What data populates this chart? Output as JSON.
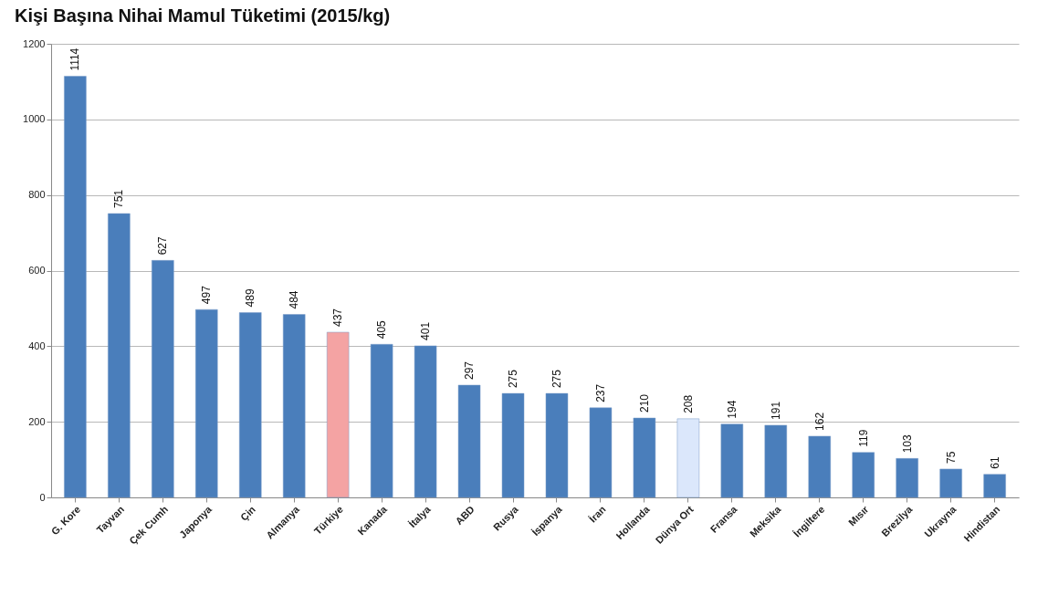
{
  "chart_data": {
    "type": "bar",
    "title": "Kişi Başına Nihai Mamul Tüketimi  (2015/kg)",
    "categories": [
      "G. Kore",
      "Tayvan",
      "Çek Cumh",
      "Japonya",
      "Çin",
      "Almanya",
      "Türkiye",
      "Kanada",
      "İtalya",
      "ABD",
      "Rusya",
      "İspanya",
      "İran",
      "Hollanda",
      "Dünya Ort",
      "Fransa",
      "Meksika",
      "İngiltere",
      "Mısır",
      "Brezilya",
      "Ukrayna",
      "Hindistan"
    ],
    "values": [
      1114,
      751,
      627,
      497,
      489,
      484,
      437,
      405,
      401,
      297,
      275,
      275,
      237,
      210,
      208,
      194,
      191,
      162,
      119,
      103,
      75,
      61
    ],
    "colors": [
      "#4a7ebb",
      "#4a7ebb",
      "#4a7ebb",
      "#4a7ebb",
      "#4a7ebb",
      "#4a7ebb",
      "#f4a3a3",
      "#4a7ebb",
      "#4a7ebb",
      "#4a7ebb",
      "#4a7ebb",
      "#4a7ebb",
      "#4a7ebb",
      "#4a7ebb",
      "#dbe7fb",
      "#4a7ebb",
      "#4a7ebb",
      "#4a7ebb",
      "#4a7ebb",
      "#4a7ebb",
      "#4a7ebb",
      "#4a7ebb"
    ],
    "ylim": [
      0,
      1200
    ],
    "yticks": [
      0,
      200,
      400,
      600,
      800,
      1000,
      1200
    ],
    "grid": "y",
    "data_labels": true
  }
}
